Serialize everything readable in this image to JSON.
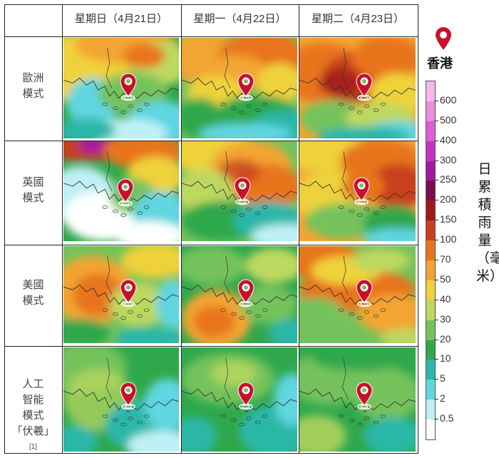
{
  "columns": [
    "星期日（4月21日）",
    "星期一（4月22日）",
    "星期二（4月23日）"
  ],
  "rows": [
    {
      "label": "歐洲\n模式"
    },
    {
      "label": "英國\n模式"
    },
    {
      "label": "美國\n模式"
    },
    {
      "label": "人工\n智能\n模式\n「伏羲」",
      "footnote": "[1]"
    }
  ],
  "legend": {
    "location_label": "香港",
    "unit_label": "日累積雨量（毫米）",
    "ticks": [
      "600",
      "500",
      "400",
      "300",
      "250",
      "200",
      "150",
      "100",
      "70",
      "50",
      "40",
      "30",
      "20",
      "10",
      "5",
      "2",
      "0.5"
    ],
    "colors": [
      "#f7b6ec",
      "#e88fe0",
      "#dc5fd6",
      "#c533c1",
      "#a3199d",
      "#7a0f4f",
      "#9d1a1a",
      "#c8401f",
      "#e8741f",
      "#f2a533",
      "#efd23a",
      "#bdd85e",
      "#74c25b",
      "#2fa84c",
      "#2cb7a8",
      "#5fd6e0",
      "#bff0f5",
      "#ffffff"
    ]
  }
}
